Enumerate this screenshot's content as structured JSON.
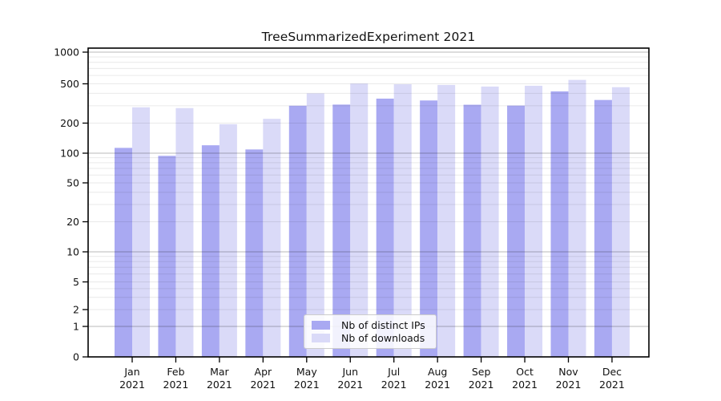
{
  "chart_data": {
    "type": "bar",
    "title": "TreeSummarizedExperiment 2021",
    "year": "2021",
    "months": [
      "Jan",
      "Feb",
      "Mar",
      "Apr",
      "May",
      "Jun",
      "Jul",
      "Aug",
      "Sep",
      "Oct",
      "Nov",
      "Dec"
    ],
    "series": [
      {
        "name": "Nb of distinct IPs",
        "color": "#a9a9f2",
        "values": [
          113,
          94,
          120,
          109,
          300,
          308,
          354,
          339,
          307,
          301,
          419,
          343
        ]
      },
      {
        "name": "Nb of downloads",
        "color": "#dadaf8",
        "values": [
          289,
          284,
          195,
          221,
          400,
          503,
          495,
          487,
          469,
          478,
          545,
          462
        ]
      }
    ],
    "y_ticks": [
      0,
      1,
      2,
      5,
      10,
      20,
      50,
      100,
      200,
      500,
      1000
    ],
    "ylim": [
      0,
      1000
    ],
    "yscale": "log-like",
    "grid": "on",
    "major_grid_values": [
      1,
      10,
      100,
      1000
    ],
    "legend_position": "bottom-center"
  },
  "colors": {
    "spine": "#000000",
    "major_grid": "rgba(0,0,0,0.22)",
    "minor_grid": "rgba(0,0,0,0.085)",
    "text": "#111111",
    "background": "#ffffff"
  }
}
